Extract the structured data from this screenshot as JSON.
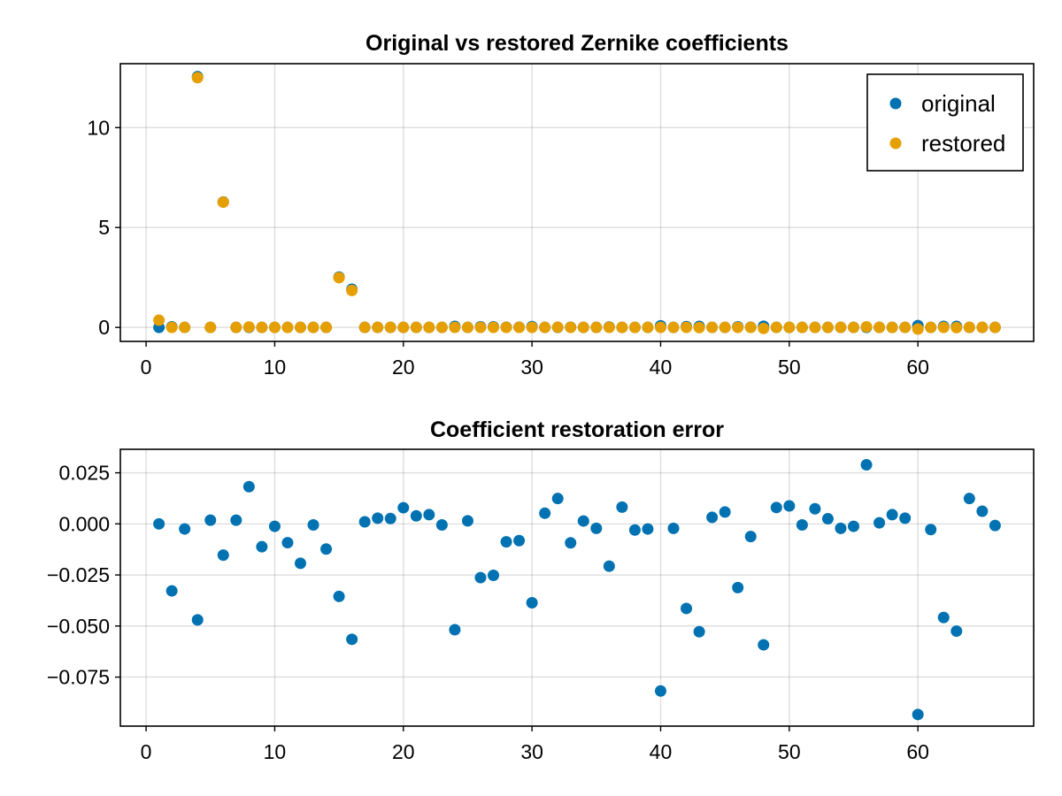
{
  "colors": {
    "original": "#0072b2",
    "restored": "#e69f00"
  },
  "chart_data": [
    {
      "type": "scatter",
      "title": "Original vs restored Zernike coefficients",
      "xlabel": "",
      "ylabel": "",
      "xlim": [
        -2,
        69
      ],
      "ylim": [
        -0.7,
        13.2
      ],
      "xticks": [
        0,
        10,
        20,
        30,
        40,
        50,
        60
      ],
      "xtick_labels": [
        "0",
        "10",
        "20",
        "30",
        "40",
        "50",
        "60"
      ],
      "yticks": [
        0,
        5,
        10
      ],
      "ytick_labels": [
        "0",
        "5",
        "10"
      ],
      "grid": true,
      "legend": {
        "placement": "top-right",
        "entries": [
          "original",
          "restored"
        ]
      },
      "x": [
        1,
        2,
        3,
        4,
        5,
        6,
        7,
        8,
        9,
        10,
        11,
        12,
        13,
        14,
        15,
        16,
        17,
        18,
        19,
        20,
        21,
        22,
        23,
        24,
        25,
        26,
        27,
        28,
        29,
        30,
        31,
        32,
        33,
        34,
        35,
        36,
        37,
        38,
        39,
        40,
        41,
        42,
        43,
        44,
        45,
        46,
        47,
        48,
        49,
        50,
        51,
        52,
        53,
        54,
        55,
        56,
        57,
        58,
        59,
        60,
        61,
        62,
        63,
        64,
        65,
        66
      ],
      "series": [
        {
          "name": "original",
          "values": [
            0,
            0.03,
            0,
            12.55,
            0,
            6.28,
            0,
            0,
            0,
            0,
            0,
            0,
            0,
            0,
            2.52,
            1.91,
            0,
            0,
            0,
            0,
            0,
            0,
            0,
            0.05,
            0,
            0.03,
            0.03,
            0.01,
            0.01,
            0.04,
            0,
            0,
            0.01,
            0,
            0,
            0.02,
            0,
            0,
            0,
            0.08,
            0,
            0.04,
            0.05,
            0,
            0,
            0.03,
            0.01,
            0.06,
            0,
            0,
            0,
            0,
            0,
            0,
            0,
            0,
            0,
            0,
            0,
            0.09,
            0,
            0.05,
            0.05,
            0,
            0,
            0
          ]
        },
        {
          "name": "restored",
          "values": [
            0.36,
            0,
            0,
            12.5,
            0,
            6.27,
            0,
            0.02,
            0,
            0,
            0,
            0,
            0,
            0,
            2.49,
            1.85,
            0,
            0,
            0,
            0,
            0,
            0,
            0,
            0,
            0,
            0,
            0,
            0,
            0,
            0,
            0,
            0.01,
            0,
            0,
            0,
            0,
            0,
            0,
            0,
            0,
            0,
            0,
            -0.01,
            0,
            0,
            0,
            0,
            -0.05,
            0,
            0,
            0,
            0,
            0,
            0,
            0,
            0.03,
            0,
            0,
            0,
            -0.08,
            0,
            0,
            -0.01,
            0,
            0,
            0
          ]
        }
      ]
    },
    {
      "type": "scatter",
      "title": "Coefficient restoration error",
      "xlabel": "",
      "ylabel": "",
      "xlim": [
        -2,
        69
      ],
      "ylim": [
        -0.099,
        0.0365
      ],
      "xticks": [
        0,
        10,
        20,
        30,
        40,
        50,
        60
      ],
      "xtick_labels": [
        "0",
        "10",
        "20",
        "30",
        "40",
        "50",
        "60"
      ],
      "yticks": [
        0.025,
        0,
        -0.025,
        -0.05,
        -0.075
      ],
      "ytick_labels": [
        "0.025",
        "0.000",
        "−0.025",
        "−0.050",
        "−0.075"
      ],
      "grid": true,
      "x": [
        1,
        2,
        3,
        4,
        5,
        6,
        7,
        8,
        9,
        10,
        11,
        12,
        13,
        14,
        15,
        16,
        17,
        18,
        19,
        20,
        21,
        22,
        23,
        24,
        25,
        26,
        27,
        28,
        29,
        30,
        31,
        32,
        33,
        34,
        35,
        36,
        37,
        38,
        39,
        40,
        41,
        42,
        43,
        44,
        45,
        46,
        47,
        48,
        49,
        50,
        51,
        52,
        53,
        54,
        55,
        56,
        57,
        58,
        59,
        60,
        61,
        62,
        63,
        64,
        65,
        66
      ],
      "series": [
        {
          "values": [
            0,
            -0.0328,
            -0.0025,
            -0.047,
            0.0018,
            -0.0153,
            0.0018,
            0.0182,
            -0.0112,
            -0.0012,
            -0.0092,
            -0.0193,
            -0.0005,
            -0.0123,
            -0.0355,
            -0.0565,
            0.001,
            0.0028,
            0.0026,
            0.0079,
            0.0039,
            0.0045,
            -0.0005,
            -0.0518,
            0.0015,
            -0.0263,
            -0.0252,
            -0.0088,
            -0.0082,
            -0.0386,
            0.0052,
            0.0124,
            -0.0093,
            0.0014,
            -0.0022,
            -0.0207,
            0.0082,
            -0.003,
            -0.0025,
            -0.0818,
            -0.0022,
            -0.0414,
            -0.0528,
            0.0032,
            0.0058,
            -0.0312,
            -0.0062,
            -0.0592,
            0.008,
            0.0088,
            -0.0005,
            0.0074,
            0.0025,
            -0.0022,
            -0.0012,
            0.0289,
            0.0005,
            0.0045,
            0.0028,
            -0.0933,
            -0.0028,
            -0.0458,
            -0.0525,
            0.0124,
            0.0062,
            -0.0008
          ]
        }
      ]
    }
  ]
}
